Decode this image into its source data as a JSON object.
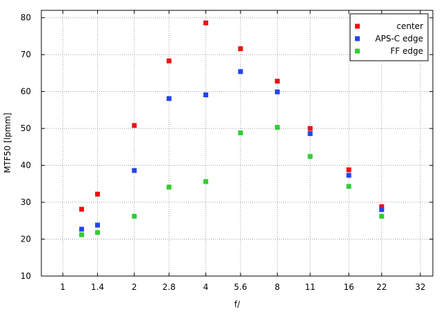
{
  "chart_data": {
    "type": "scatter",
    "xlabel": "f/",
    "ylabel": "MTF50 [lpmm]",
    "x_ticks": [
      "1",
      "1.4",
      "2",
      "2.8",
      "4",
      "5.6",
      "8",
      "11",
      "16",
      "22",
      "32"
    ],
    "y_ticks": [
      10,
      20,
      30,
      40,
      50,
      60,
      70,
      80
    ],
    "ylim": [
      10,
      82
    ],
    "x_scale": "log2",
    "grid": true,
    "legend_position": "top-right",
    "series": [
      {
        "name": "center",
        "color": "#ee1111",
        "points": [
          [
            1.2,
            28.1
          ],
          [
            1.4,
            32.2
          ],
          [
            2,
            50.8
          ],
          [
            2.8,
            68.3
          ],
          [
            4,
            78.6
          ],
          [
            5.6,
            71.6
          ],
          [
            8,
            62.8
          ],
          [
            11,
            50.0
          ],
          [
            16,
            38.8
          ],
          [
            22,
            28.8
          ]
        ]
      },
      {
        "name": "APS-C edge",
        "color": "#2244ee",
        "points": [
          [
            1.2,
            22.7
          ],
          [
            1.4,
            23.8
          ],
          [
            2,
            38.6
          ],
          [
            2.8,
            58.1
          ],
          [
            4,
            59.1
          ],
          [
            5.6,
            65.4
          ],
          [
            8,
            59.9
          ],
          [
            11,
            48.6
          ],
          [
            16,
            37.3
          ],
          [
            22,
            28.0
          ]
        ]
      },
      {
        "name": "FF edge",
        "color": "#33cc33",
        "points": [
          [
            1.2,
            21.2
          ],
          [
            1.4,
            21.8
          ],
          [
            2,
            26.2
          ],
          [
            2.8,
            34.1
          ],
          [
            4,
            35.6
          ],
          [
            5.6,
            48.8
          ],
          [
            8,
            50.3
          ],
          [
            11,
            42.4
          ],
          [
            16,
            34.3
          ],
          [
            22,
            26.2
          ]
        ]
      }
    ]
  }
}
